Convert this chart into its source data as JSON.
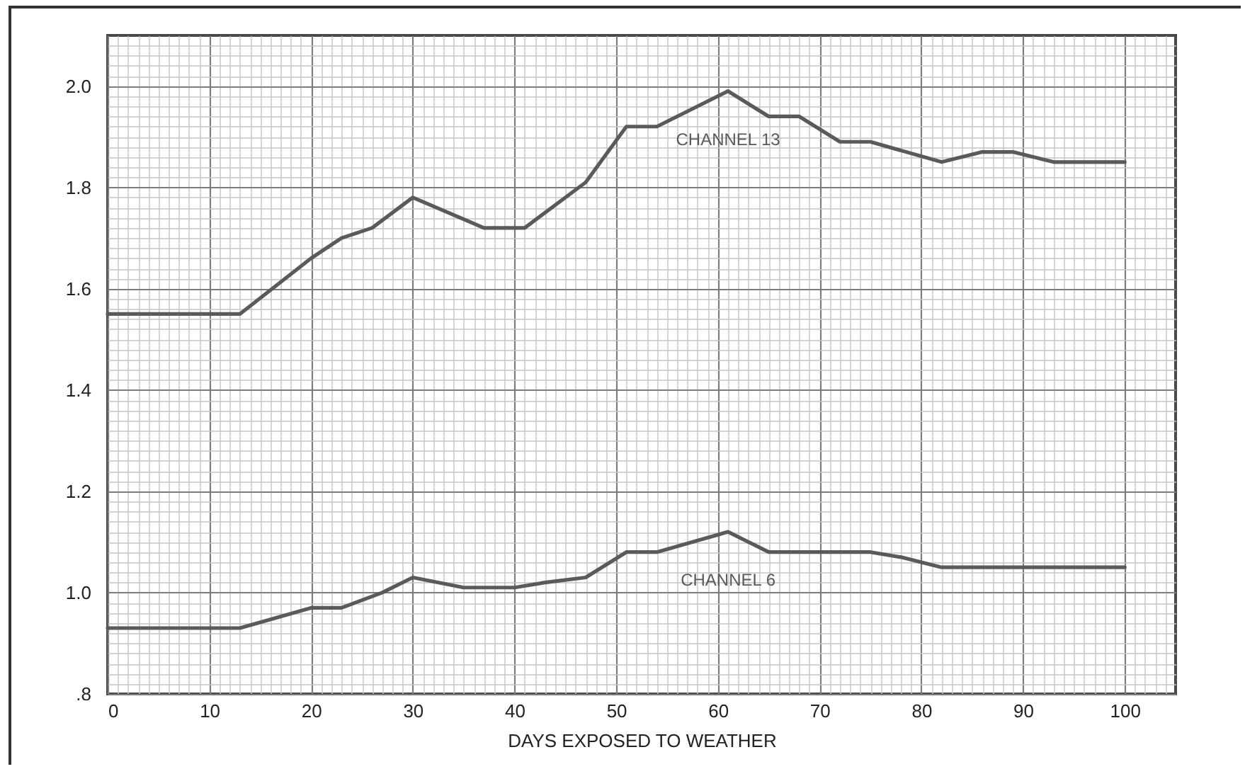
{
  "chart_data": {
    "type": "line",
    "xlabel": "DAYS EXPOSED TO WEATHER",
    "xlim": [
      0,
      105
    ],
    "xticks": [
      0,
      10,
      20,
      30,
      40,
      50,
      60,
      70,
      80,
      90,
      100
    ],
    "ylim": [
      0.8,
      2.1
    ],
    "yticks": [
      {
        "value": 0.8,
        "label": ".8"
      },
      {
        "value": 1,
        "label": "1.0"
      },
      1.2,
      1.4,
      1.6,
      1.8,
      {
        "value": 2,
        "label": "2.0"
      }
    ],
    "grid": true,
    "legend": false,
    "series": [
      {
        "name": "CHANNEL 13",
        "color": "#5a5a5a",
        "x": [
          0,
          13,
          20,
          23,
          26,
          30,
          37,
          41,
          47,
          51,
          54,
          61,
          65,
          68,
          72,
          75,
          82,
          86,
          89,
          93,
          100
        ],
        "values": [
          1.55,
          1.55,
          1.66,
          1.7,
          1.72,
          1.78,
          1.72,
          1.72,
          1.81,
          1.92,
          1.92,
          1.99,
          1.94,
          1.94,
          1.89,
          1.89,
          1.85,
          1.87,
          1.87,
          1.85,
          1.85
        ]
      },
      {
        "name": "CHANNEL 6",
        "color": "#5a5a5a",
        "x": [
          0,
          13,
          20,
          23,
          27,
          30,
          35,
          40,
          43,
          47,
          51,
          54,
          61,
          65,
          75,
          78,
          82,
          100
        ],
        "values": [
          0.93,
          0.93,
          0.97,
          0.97,
          1.0,
          1.03,
          1.01,
          1.01,
          1.02,
          1.03,
          1.08,
          1.08,
          1.12,
          1.08,
          1.08,
          1.07,
          1.05,
          1.05
        ]
      }
    ]
  }
}
